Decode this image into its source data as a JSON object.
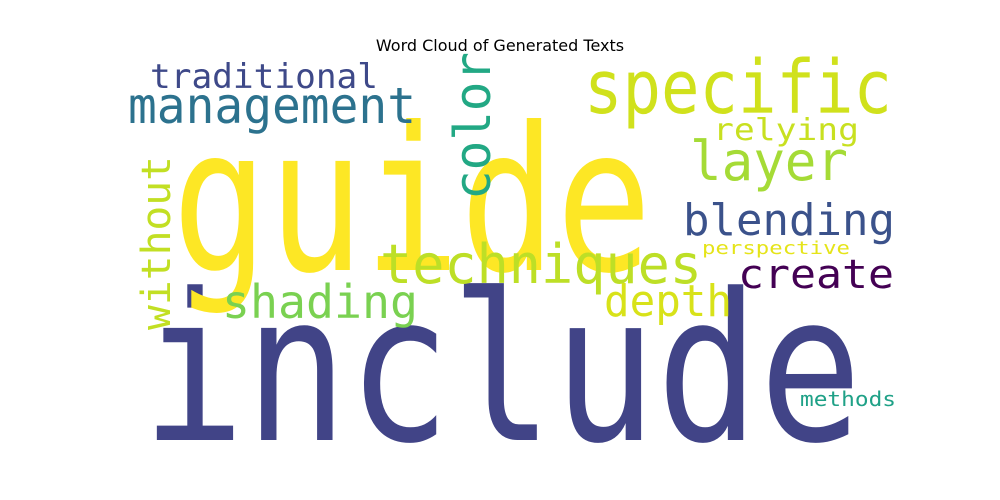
{
  "chart_data": {
    "type": "wordcloud",
    "title": "Word Cloud of Generated Texts",
    "words": [
      {
        "text": "include",
        "weight": 1.0,
        "color": "#414487"
      },
      {
        "text": "guide",
        "weight": 0.95,
        "color": "#fde725"
      },
      {
        "text": "specific",
        "weight": 0.4,
        "color": "#d0e11c"
      },
      {
        "text": "techniques",
        "weight": 0.3,
        "color": "#bddf26"
      },
      {
        "text": "management",
        "weight": 0.28,
        "color": "#2c728e"
      },
      {
        "text": "layer",
        "weight": 0.28,
        "color": "#a5db36"
      },
      {
        "text": "color",
        "weight": 0.28,
        "color": "#22a884"
      },
      {
        "text": "blending",
        "weight": 0.27,
        "color": "#3b528b"
      },
      {
        "text": "shading",
        "weight": 0.26,
        "color": "#7ad151"
      },
      {
        "text": "depth",
        "weight": 0.25,
        "color": "#d8e219"
      },
      {
        "text": "create",
        "weight": 0.24,
        "color": "#440154"
      },
      {
        "text": "without",
        "weight": 0.24,
        "color": "#c2df23"
      },
      {
        "text": "traditional",
        "weight": 0.22,
        "color": "#3e4989"
      },
      {
        "text": "relying",
        "weight": 0.18,
        "color": "#c8e020"
      },
      {
        "text": "methods",
        "weight": 0.12,
        "color": "#1fa187"
      },
      {
        "text": "perspective",
        "weight": 0.11,
        "color": "#e5e419"
      }
    ]
  }
}
